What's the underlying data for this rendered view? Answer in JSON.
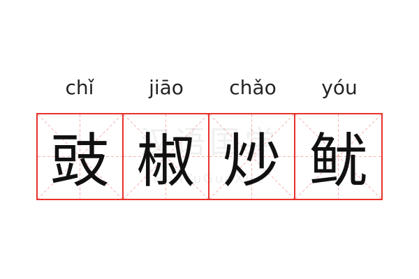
{
  "words": [
    {
      "pinyin": "chǐ",
      "hanzi": "豉"
    },
    {
      "pinyin": "jiāo",
      "hanzi": "椒"
    },
    {
      "pinyin": "chǎo",
      "hanzi": "炒"
    },
    {
      "pinyin": "yóu",
      "hanzi": "鱿"
    }
  ],
  "watermark": {
    "cn": "汉语国学",
    "en": "HanYuGuoXue"
  },
  "colors": {
    "grid_border": "#e8302a",
    "guide_lines": "#f4b4b0",
    "text": "#111111"
  }
}
